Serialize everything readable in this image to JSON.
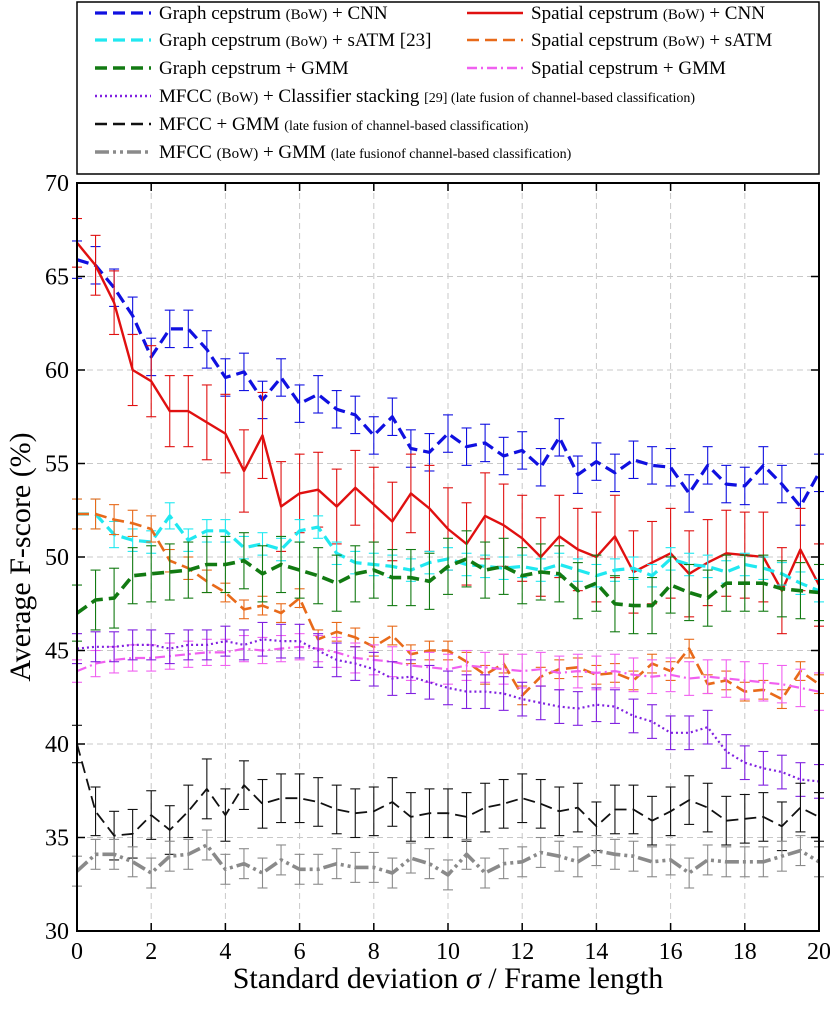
{
  "chart_data": {
    "type": "line",
    "title": "",
    "xlabel_prefix": "Standard deviation ",
    "xlabel_symbol": "σ",
    "xlabel_suffix": " / Frame length",
    "ylabel": "Average F-score (%)",
    "xlim": [
      0,
      20
    ],
    "ylim": [
      30,
      70
    ],
    "xticks": [
      0,
      2,
      4,
      6,
      8,
      10,
      12,
      14,
      16,
      18,
      20
    ],
    "yticks": [
      30,
      35,
      40,
      45,
      50,
      55,
      60,
      65,
      70
    ],
    "grid": true,
    "legend_position": "top",
    "x_step": 0.5,
    "series": [
      {
        "name": "Graph cepstrum (BoW) + CNN",
        "legend": {
          "main": "Graph cepstrum ",
          "small": "(BoW)",
          "rest": " + CNN",
          "note": ""
        },
        "color": "#1010e0",
        "style": "dashed",
        "width": 3.2,
        "values": [
          65.9,
          65.6,
          64.4,
          62.9,
          60.7,
          62.2,
          62.2,
          61.1,
          59.6,
          59.9,
          58.4,
          59.6,
          58.2,
          58.7,
          57.9,
          57.6,
          56.5,
          57.5,
          55.8,
          55.6,
          56.6,
          55.9,
          56.1,
          55.4,
          55.7,
          54.8,
          56.4,
          54.4,
          55.1,
          54.5,
          55.2,
          54.9,
          54.8,
          53.4,
          54.9,
          53.9,
          53.8,
          54.9,
          53.9,
          52.7,
          54.5
        ],
        "errors": [
          1.0,
          1.0,
          1.0,
          1.0,
          1.0,
          1.0,
          1.0,
          1.0,
          1.0,
          1.0,
          1.0,
          1.0,
          1.0,
          1.0,
          1.0,
          1.0,
          1.0,
          1.0,
          1.0,
          1.0,
          1.0,
          1.0,
          1.0,
          1.0,
          1.0,
          1.0,
          1.0,
          1.0,
          1.0,
          1.0,
          1.0,
          1.0,
          1.0,
          1.0,
          1.0,
          1.0,
          1.0,
          1.0,
          1.0,
          1.0,
          1.0
        ]
      },
      {
        "name": "Spatial cepstrum (BoW) + CNN",
        "legend": {
          "main": "Spatial cepstrum ",
          "small": "(BoW)",
          "rest": " + CNN",
          "note": ""
        },
        "color": "#e01010",
        "style": "solid",
        "width": 2.4,
        "values": [
          66.8,
          65.6,
          63.6,
          60.0,
          59.4,
          57.8,
          57.8,
          57.2,
          56.6,
          54.6,
          56.5,
          52.7,
          53.4,
          53.6,
          52.7,
          53.7,
          52.8,
          51.9,
          53.4,
          52.6,
          51.5,
          50.7,
          52.2,
          51.7,
          51.0,
          50.0,
          51.1,
          50.4,
          50.0,
          51.1,
          49.2,
          49.7,
          50.2,
          49.1,
          49.7,
          50.2,
          50.1,
          50.0,
          48.2,
          50.4,
          48.5
        ],
        "errors": [
          1.3,
          1.6,
          1.7,
          1.9,
          1.9,
          1.9,
          1.9,
          2.0,
          2.1,
          2.2,
          2.3,
          2.4,
          2.1,
          2.0,
          2.0,
          2.0,
          2.0,
          2.1,
          2.1,
          2.3,
          2.2,
          2.2,
          2.3,
          2.2,
          2.3,
          2.1,
          2.2,
          2.2,
          2.4,
          2.2,
          2.2,
          2.2,
          2.4,
          2.3,
          2.3,
          2.3,
          2.3,
          2.4,
          2.3,
          2.2,
          2.2
        ]
      },
      {
        "name": "Graph cepstrum (BoW) + sATM [23]",
        "legend": {
          "main": "Graph cepstrum ",
          "small": "(BoW)",
          "rest": " + sATM ",
          "note": "[23]"
        },
        "color": "#20e8f0",
        "style": "dashed",
        "width": 3.2,
        "values": [
          52.3,
          52.3,
          51.2,
          50.9,
          50.8,
          52.2,
          50.9,
          51.4,
          51.4,
          50.5,
          50.7,
          50.4,
          51.4,
          51.6,
          50.2,
          49.7,
          49.6,
          49.5,
          49.3,
          49.7,
          49.9,
          49.6,
          49.5,
          49.4,
          49.5,
          49.3,
          49.6,
          49.3,
          49.0,
          49.3,
          49.4,
          49.0,
          49.9,
          49.6,
          49.5,
          49.2,
          49.6,
          49.4,
          49.1,
          48.6,
          48.2
        ],
        "errors": [
          0.8,
          0.8,
          0.7,
          0.6,
          0.6,
          0.7,
          0.6,
          0.6,
          0.6,
          0.6,
          0.6,
          0.6,
          0.6,
          0.6,
          0.6,
          0.6,
          0.6,
          0.6,
          0.6,
          0.6,
          0.6,
          0.6,
          0.6,
          0.6,
          0.6,
          0.6,
          0.6,
          0.6,
          0.6,
          0.6,
          0.6,
          0.6,
          0.6,
          0.6,
          0.6,
          0.6,
          0.6,
          0.6,
          0.6,
          0.6,
          0.6
        ]
      },
      {
        "name": "Spatial cepstrum (BoW) + sATM",
        "legend": {
          "main": "Spatial cepstrum ",
          "small": "(BoW)",
          "rest": " + sATM",
          "note": ""
        },
        "color": "#e86a1a",
        "style": "dashed",
        "width": 2.6,
        "values": [
          52.3,
          52.3,
          52.0,
          51.8,
          51.5,
          49.8,
          49.4,
          48.7,
          48.1,
          47.2,
          47.4,
          47.0,
          47.8,
          45.6,
          46.0,
          45.7,
          45.2,
          45.8,
          44.8,
          45.0,
          45.0,
          44.4,
          43.7,
          44.3,
          42.6,
          43.6,
          44.0,
          44.1,
          43.7,
          43.8,
          43.4,
          44.3,
          43.9,
          45.1,
          43.2,
          43.4,
          42.8,
          42.9,
          42.4,
          43.9,
          43.2
        ],
        "errors": [
          0.8,
          0.8,
          0.8,
          0.7,
          0.7,
          0.6,
          0.6,
          0.6,
          0.5,
          0.5,
          0.5,
          0.5,
          0.5,
          0.5,
          0.5,
          0.5,
          0.5,
          0.5,
          0.5,
          0.5,
          0.5,
          0.5,
          0.5,
          0.5,
          0.5,
          0.5,
          0.5,
          0.5,
          0.5,
          0.5,
          0.5,
          0.5,
          0.5,
          0.5,
          0.5,
          0.5,
          0.5,
          0.5,
          0.5,
          0.5,
          0.5
        ]
      },
      {
        "name": "Graph cepstrum + GMM",
        "legend": {
          "main": "Graph cepstrum + GMM",
          "small": "",
          "rest": "",
          "note": ""
        },
        "color": "#127a12",
        "style": "dashed",
        "width": 3.6,
        "values": [
          47.0,
          47.7,
          47.8,
          49.0,
          49.1,
          49.2,
          49.3,
          49.6,
          49.6,
          49.8,
          49.1,
          49.6,
          49.3,
          49.0,
          48.6,
          49.1,
          49.3,
          48.9,
          48.9,
          48.7,
          49.5,
          49.9,
          49.3,
          49.5,
          49.0,
          49.2,
          49.1,
          48.2,
          48.6,
          47.5,
          47.4,
          47.4,
          48.5,
          48.1,
          47.8,
          48.6,
          48.6,
          48.6,
          48.3,
          48.2,
          48.1
        ],
        "errors": [
          1.5,
          1.6,
          1.6,
          1.5,
          1.5,
          1.5,
          1.5,
          1.5,
          1.5,
          1.5,
          1.5,
          1.5,
          1.5,
          1.5,
          1.5,
          1.5,
          1.5,
          1.5,
          1.5,
          1.5,
          1.5,
          1.5,
          1.5,
          1.5,
          1.5,
          1.5,
          1.5,
          1.5,
          1.5,
          1.5,
          1.5,
          1.5,
          1.5,
          1.5,
          1.5,
          1.5,
          1.5,
          1.5,
          1.5,
          1.5,
          1.5
        ]
      },
      {
        "name": "Spatial cepstrum + GMM",
        "legend": {
          "main": "Spatial cepstrum + GMM",
          "small": "",
          "rest": "",
          "note": ""
        },
        "color": "#f060f0",
        "style": "dashdot",
        "width": 2.2,
        "values": [
          43.9,
          44.3,
          44.5,
          44.6,
          44.6,
          44.7,
          44.8,
          44.9,
          44.9,
          45.1,
          45.0,
          45.1,
          45.2,
          45.1,
          44.9,
          44.6,
          44.5,
          44.4,
          44.2,
          44.1,
          44.0,
          44.2,
          44.1,
          44.0,
          43.9,
          44.0,
          43.8,
          43.9,
          43.8,
          43.9,
          43.7,
          43.6,
          43.7,
          43.5,
          43.6,
          43.5,
          43.4,
          43.3,
          43.2,
          43.0,
          42.8
        ],
        "errors": [
          0.6,
          0.7,
          0.7,
          0.7,
          0.7,
          0.7,
          0.7,
          0.7,
          0.7,
          0.7,
          0.7,
          0.7,
          0.7,
          0.7,
          0.8,
          0.8,
          0.8,
          0.8,
          0.8,
          0.8,
          0.8,
          0.8,
          0.8,
          0.8,
          0.9,
          0.9,
          0.9,
          0.9,
          0.9,
          0.9,
          0.9,
          0.9,
          0.9,
          0.9,
          0.9,
          1.0,
          1.0,
          1.0,
          1.0,
          1.0,
          1.0
        ]
      },
      {
        "name": "MFCC (BoW) + Classifier stacking [29] (late fusion of channel-based classification)",
        "legend": {
          "main": "MFCC ",
          "small": "(BoW)",
          "rest": " + Classifier stacking ",
          "note": "[29]  (late fusion of channel-based classification)"
        },
        "color": "#8020e0",
        "style": "dotted",
        "width": 2.2,
        "values": [
          45.1,
          45.2,
          45.2,
          45.3,
          45.3,
          45.1,
          45.3,
          45.3,
          45.5,
          45.3,
          45.6,
          45.5,
          45.5,
          45.0,
          44.5,
          44.3,
          44.0,
          43.5,
          43.6,
          43.3,
          43.0,
          42.8,
          42.8,
          42.7,
          42.4,
          42.2,
          42.0,
          41.9,
          42.1,
          42.0,
          41.5,
          41.2,
          40.6,
          40.6,
          40.9,
          39.6,
          39.0,
          38.7,
          38.5,
          38.1,
          38.0
        ],
        "errors": [
          0.8,
          0.8,
          0.8,
          0.8,
          0.8,
          0.8,
          0.8,
          0.8,
          0.8,
          0.8,
          0.9,
          0.9,
          0.9,
          0.9,
          0.9,
          0.9,
          0.9,
          0.9,
          0.9,
          0.9,
          0.9,
          0.9,
          0.9,
          0.9,
          0.9,
          0.9,
          0.9,
          0.9,
          0.9,
          0.9,
          0.9,
          0.9,
          0.9,
          0.9,
          0.9,
          0.9,
          0.9,
          0.9,
          0.9,
          0.9,
          0.9
        ]
      },
      {
        "name": "MFCC + GMM (late fusion of channel-based classification)",
        "legend": {
          "main": "MFCC + GMM ",
          "small": "",
          "rest": "",
          "note": "(late fusion of channel-based classification)"
        },
        "color": "#111111",
        "style": "dashed",
        "width": 1.8,
        "values": [
          40.0,
          36.4,
          35.1,
          35.2,
          36.2,
          35.4,
          36.4,
          37.6,
          36.2,
          37.8,
          36.8,
          37.1,
          37.1,
          36.9,
          36.5,
          36.3,
          36.4,
          36.9,
          36.1,
          36.3,
          36.3,
          36.1,
          36.6,
          36.8,
          37.1,
          36.8,
          36.4,
          36.6,
          35.6,
          36.5,
          36.5,
          35.9,
          36.4,
          37.0,
          36.6,
          35.9,
          36.0,
          36.1,
          35.6,
          36.6,
          36.1
        ],
        "errors": [
          1.0,
          1.3,
          1.3,
          1.3,
          1.3,
          1.3,
          1.4,
          1.6,
          1.4,
          1.3,
          1.3,
          1.3,
          1.3,
          1.3,
          1.3,
          1.3,
          1.3,
          1.3,
          1.3,
          1.3,
          1.3,
          1.3,
          1.3,
          1.3,
          1.3,
          1.3,
          1.3,
          1.3,
          1.3,
          1.3,
          1.3,
          1.3,
          1.3,
          1.3,
          1.3,
          1.3,
          1.3,
          1.3,
          1.3,
          1.3,
          1.3
        ]
      },
      {
        "name": "MFCC (BoW) + GMM (late fusionof channel-based classification)",
        "legend": {
          "main": "MFCC ",
          "small": "(BoW)",
          "rest": " + GMM ",
          "note": "(late fusionof channel-based classification)"
        },
        "color": "#8a8a8a",
        "style": "dashdotdot",
        "width": 3.6,
        "values": [
          33.2,
          34.1,
          34.1,
          33.7,
          33.1,
          34.0,
          34.1,
          34.6,
          33.3,
          33.6,
          33.1,
          33.8,
          33.3,
          33.3,
          33.6,
          33.4,
          33.4,
          33.1,
          33.9,
          33.6,
          33.0,
          34.1,
          33.1,
          33.6,
          33.7,
          34.2,
          34.0,
          33.7,
          34.3,
          34.1,
          34.0,
          33.7,
          33.8,
          33.1,
          33.8,
          33.7,
          33.7,
          33.7,
          34.0,
          34.3,
          33.7
        ],
        "errors": [
          0.8,
          0.8,
          0.8,
          0.8,
          0.8,
          0.8,
          0.8,
          0.8,
          0.8,
          0.8,
          0.8,
          0.8,
          0.8,
          0.8,
          0.8,
          0.8,
          0.8,
          0.8,
          0.8,
          0.8,
          0.8,
          0.8,
          0.8,
          0.8,
          0.8,
          0.8,
          0.8,
          0.8,
          0.8,
          0.8,
          0.8,
          0.8,
          0.8,
          0.8,
          0.8,
          0.8,
          0.8,
          0.8,
          0.8,
          0.8,
          0.8
        ]
      }
    ]
  }
}
